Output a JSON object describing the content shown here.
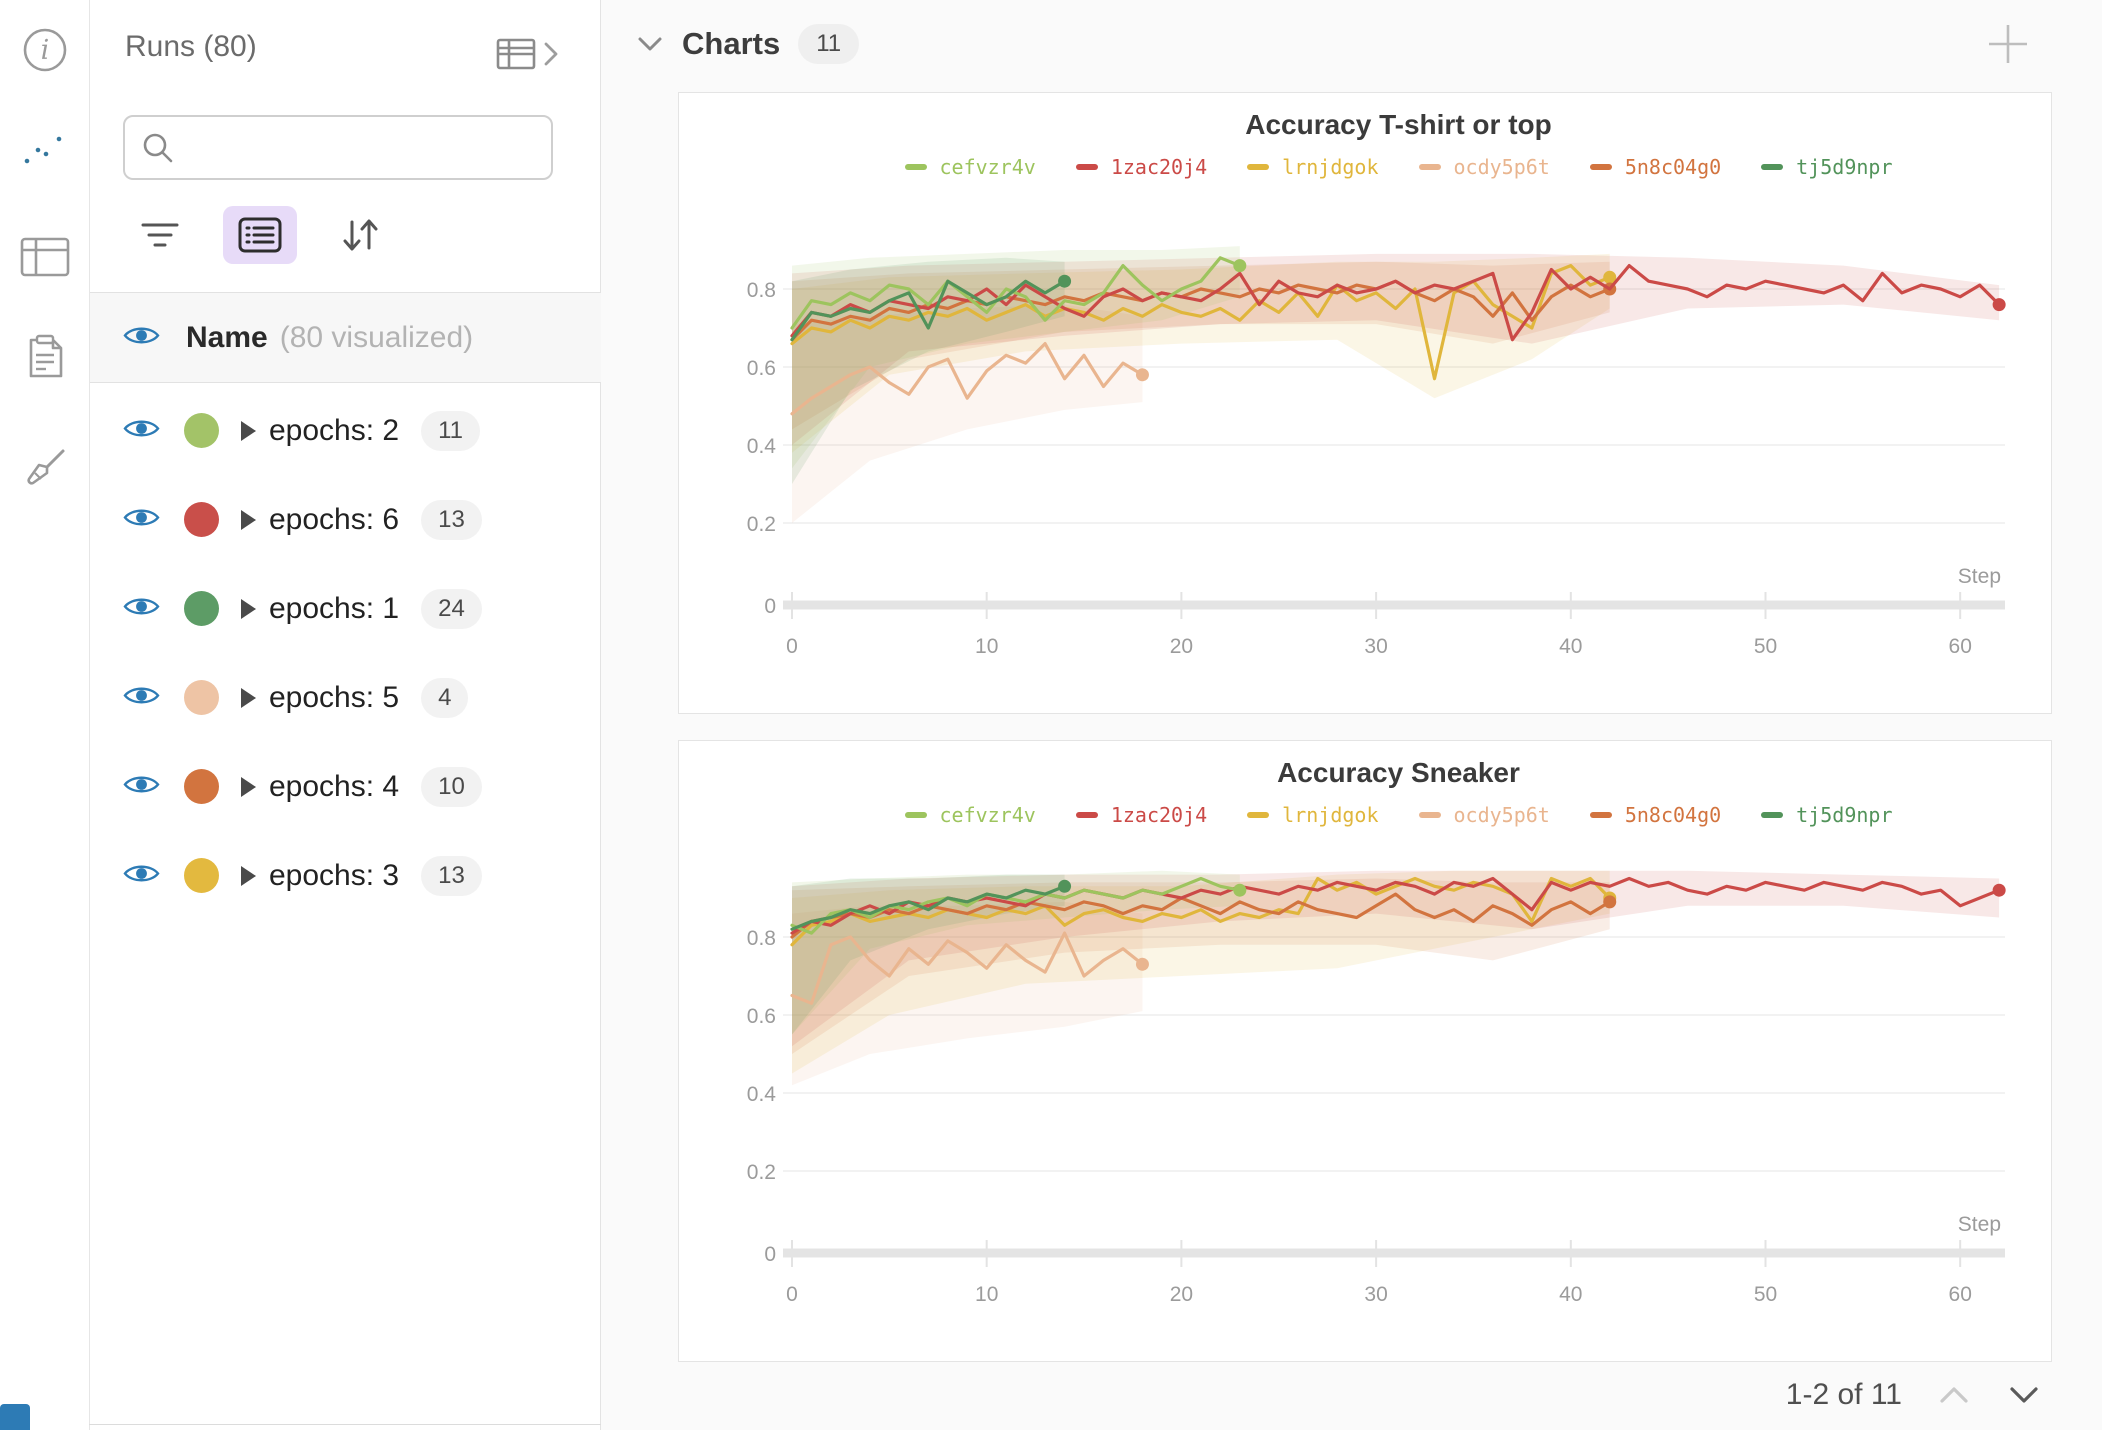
{
  "sidebar": {
    "icons": [
      {
        "name": "info-icon"
      },
      {
        "name": "line-chart-icon",
        "selected": true
      },
      {
        "name": "table-icon"
      },
      {
        "name": "notes-icon"
      },
      {
        "name": "broom-icon"
      }
    ],
    "accent_color": "#35789e"
  },
  "runs_panel": {
    "title": "Runs (80)",
    "expand_icon": "table-chevron-icon",
    "search": {
      "value": "",
      "placeholder": ""
    },
    "toolbar": [
      "filter-icon",
      "list-view-icon",
      "sort-icon"
    ],
    "name_header": {
      "label": "Name",
      "note": "(80 visualized)"
    },
    "eye_color": "#2d7bb5",
    "groups": [
      {
        "label": "epochs: 2",
        "count": "11",
        "color": "#a3c368"
      },
      {
        "label": "epochs: 6",
        "count": "13",
        "color": "#c94f4a"
      },
      {
        "label": "epochs: 1",
        "count": "24",
        "color": "#5d9c66"
      },
      {
        "label": "epochs: 5",
        "count": "4",
        "color": "#eec4a5"
      },
      {
        "label": "epochs: 4",
        "count": "10",
        "color": "#d2743f"
      },
      {
        "label": "epochs: 3",
        "count": "13",
        "color": "#e3b93f"
      }
    ]
  },
  "main": {
    "section_title": "Charts",
    "section_badge": "11",
    "add_button": "plus-icon",
    "pagination": {
      "label": "1-2 of 11",
      "prev_enabled": false,
      "next_enabled": true
    }
  },
  "chart_data": [
    {
      "type": "line",
      "title": "Accuracy T-shirt or top",
      "xlabel": "Step",
      "x_ticks": [
        0,
        10,
        20,
        30,
        40,
        50,
        60
      ],
      "y_ticks": [
        0,
        0.2,
        0.4,
        0.6,
        0.8
      ],
      "ylim": [
        0,
        1.0
      ],
      "grid": true,
      "legend_position": "top-center",
      "draw_order": [
        3,
        2,
        4,
        1,
        0,
        5
      ],
      "series": [
        {
          "name": "cefvzr4v",
          "color": "#9dc45e",
          "values": [
            0.7,
            0.77,
            0.76,
            0.79,
            0.77,
            0.81,
            0.8,
            0.76,
            0.82,
            0.78,
            0.74,
            0.8,
            0.78,
            0.72,
            0.77,
            0.76,
            0.79,
            0.86,
            0.81,
            0.77,
            0.8,
            0.82,
            0.88,
            0.86
          ],
          "band": {
            "x": [
              0,
              4,
              9,
              14,
              19,
              23
            ],
            "lo": [
              0.34,
              0.6,
              0.66,
              0.69,
              0.72,
              0.78
            ],
            "hi": [
              0.86,
              0.88,
              0.89,
              0.9,
              0.9,
              0.91
            ]
          }
        },
        {
          "name": "1zac20j4",
          "color": "#cb4a47",
          "values": [
            0.68,
            0.74,
            0.73,
            0.76,
            0.74,
            0.77,
            0.76,
            0.75,
            0.78,
            0.77,
            0.8,
            0.76,
            0.81,
            0.78,
            0.75,
            0.73,
            0.78,
            0.8,
            0.77,
            0.79,
            0.78,
            0.77,
            0.8,
            0.84,
            0.76,
            0.82,
            0.79,
            0.78,
            0.81,
            0.79,
            0.8,
            0.82,
            0.79,
            0.81,
            0.8,
            0.82,
            0.84,
            0.67,
            0.74,
            0.85,
            0.8,
            0.83,
            0.8,
            0.86,
            0.82,
            0.81,
            0.8,
            0.78,
            0.81,
            0.8,
            0.82,
            0.81,
            0.8,
            0.79,
            0.81,
            0.77,
            0.84,
            0.79,
            0.81,
            0.8,
            0.78,
            0.81,
            0.76
          ],
          "band": {
            "x": [
              0,
              6,
              14,
              22,
              30,
              38,
              46,
              54,
              62
            ],
            "lo": [
              0.4,
              0.64,
              0.68,
              0.71,
              0.72,
              0.66,
              0.75,
              0.76,
              0.72
            ],
            "hi": [
              0.84,
              0.86,
              0.87,
              0.88,
              0.89,
              0.89,
              0.88,
              0.86,
              0.81
            ]
          }
        },
        {
          "name": "lrnjdgok",
          "color": "#e0b63c",
          "values": [
            0.66,
            0.7,
            0.69,
            0.72,
            0.7,
            0.73,
            0.72,
            0.74,
            0.73,
            0.75,
            0.72,
            0.74,
            0.76,
            0.73,
            0.75,
            0.74,
            0.72,
            0.75,
            0.73,
            0.76,
            0.74,
            0.73,
            0.75,
            0.72,
            0.77,
            0.74,
            0.79,
            0.73,
            0.81,
            0.77,
            0.79,
            0.75,
            0.8,
            0.57,
            0.79,
            0.82,
            0.76,
            0.73,
            0.7,
            0.84,
            0.86,
            0.81,
            0.83
          ],
          "band": {
            "x": [
              0,
              5,
              12,
              20,
              28,
              33,
              38,
              42
            ],
            "lo": [
              0.38,
              0.58,
              0.64,
              0.66,
              0.67,
              0.52,
              0.62,
              0.75
            ],
            "hi": [
              0.8,
              0.83,
              0.84,
              0.85,
              0.87,
              0.87,
              0.88,
              0.89
            ]
          }
        },
        {
          "name": "ocdy5p6t",
          "color": "#e9b58f",
          "values": [
            0.48,
            0.52,
            0.55,
            0.58,
            0.6,
            0.56,
            0.53,
            0.6,
            0.62,
            0.52,
            0.59,
            0.63,
            0.61,
            0.66,
            0.57,
            0.63,
            0.55,
            0.61,
            0.58
          ],
          "band": {
            "x": [
              0,
              4,
              9,
              14,
              18
            ],
            "lo": [
              0.2,
              0.36,
              0.44,
              0.49,
              0.51
            ],
            "hi": [
              0.71,
              0.73,
              0.75,
              0.76,
              0.73
            ]
          }
        },
        {
          "name": "5n8c04g0",
          "color": "#d2743f",
          "values": [
            0.67,
            0.72,
            0.71,
            0.73,
            0.72,
            0.75,
            0.74,
            0.76,
            0.75,
            0.77,
            0.76,
            0.78,
            0.77,
            0.76,
            0.78,
            0.77,
            0.79,
            0.78,
            0.77,
            0.79,
            0.78,
            0.8,
            0.79,
            0.78,
            0.8,
            0.79,
            0.81,
            0.8,
            0.79,
            0.81,
            0.8,
            0.82,
            0.79,
            0.77,
            0.8,
            0.78,
            0.73,
            0.79,
            0.72,
            0.78,
            0.81,
            0.78,
            0.8
          ],
          "band": {
            "x": [
              0,
              6,
              14,
              22,
              30,
              36,
              42
            ],
            "lo": [
              0.44,
              0.62,
              0.69,
              0.71,
              0.71,
              0.66,
              0.74
            ],
            "hi": [
              0.82,
              0.84,
              0.85,
              0.86,
              0.87,
              0.86,
              0.87
            ]
          }
        },
        {
          "name": "tj5d9npr",
          "color": "#52935a",
          "values": [
            0.67,
            0.74,
            0.73,
            0.75,
            0.74,
            0.77,
            0.79,
            0.7,
            0.82,
            0.79,
            0.76,
            0.78,
            0.82,
            0.79,
            0.82
          ],
          "band": {
            "x": [
              0,
              3,
              7,
              11,
              14
            ],
            "lo": [
              0.3,
              0.54,
              0.64,
              0.69,
              0.73
            ],
            "hi": [
              0.82,
              0.85,
              0.87,
              0.88,
              0.87
            ]
          }
        }
      ]
    },
    {
      "type": "line",
      "title": "Accuracy Sneaker",
      "xlabel": "Step",
      "x_ticks": [
        0,
        10,
        20,
        30,
        40,
        50,
        60
      ],
      "y_ticks": [
        0,
        0.2,
        0.4,
        0.6,
        0.8
      ],
      "ylim": [
        0,
        1.0
      ],
      "grid": true,
      "legend_position": "top-center",
      "draw_order": [
        3,
        2,
        4,
        1,
        0,
        5
      ],
      "series": [
        {
          "name": "cefvzr4v",
          "color": "#9dc45e",
          "values": [
            0.83,
            0.81,
            0.86,
            0.87,
            0.85,
            0.88,
            0.87,
            0.89,
            0.9,
            0.88,
            0.91,
            0.9,
            0.89,
            0.91,
            0.9,
            0.92,
            0.91,
            0.9,
            0.92,
            0.91,
            0.93,
            0.95,
            0.93,
            0.92
          ],
          "band": {
            "x": [
              0,
              4,
              9,
              14,
              19,
              23
            ],
            "lo": [
              0.55,
              0.77,
              0.83,
              0.85,
              0.87,
              0.88
            ],
            "hi": [
              0.94,
              0.95,
              0.96,
              0.96,
              0.97,
              0.96
            ]
          }
        },
        {
          "name": "1zac20j4",
          "color": "#cb4a47",
          "values": [
            0.81,
            0.84,
            0.83,
            0.86,
            0.88,
            0.86,
            0.89,
            0.88,
            0.9,
            0.89,
            0.9,
            0.89,
            0.88,
            0.91,
            0.9,
            0.92,
            0.91,
            0.9,
            0.92,
            0.91,
            0.9,
            0.92,
            0.91,
            0.93,
            0.92,
            0.91,
            0.93,
            0.92,
            0.94,
            0.93,
            0.92,
            0.94,
            0.93,
            0.91,
            0.94,
            0.93,
            0.95,
            0.91,
            0.87,
            0.94,
            0.92,
            0.94,
            0.93,
            0.95,
            0.93,
            0.94,
            0.92,
            0.91,
            0.93,
            0.92,
            0.94,
            0.93,
            0.92,
            0.94,
            0.93,
            0.92,
            0.94,
            0.93,
            0.91,
            0.92,
            0.88,
            0.9,
            0.92
          ],
          "band": {
            "x": [
              0,
              6,
              14,
              22,
              30,
              38,
              46,
              54,
              62
            ],
            "lo": [
              0.52,
              0.74,
              0.8,
              0.84,
              0.86,
              0.82,
              0.88,
              0.88,
              0.85
            ],
            "hi": [
              0.93,
              0.95,
              0.96,
              0.96,
              0.97,
              0.97,
              0.97,
              0.96,
              0.95
            ]
          }
        },
        {
          "name": "lrnjdgok",
          "color": "#e0b63c",
          "values": [
            0.78,
            0.83,
            0.84,
            0.86,
            0.84,
            0.85,
            0.86,
            0.85,
            0.87,
            0.86,
            0.85,
            0.87,
            0.86,
            0.88,
            0.83,
            0.86,
            0.87,
            0.85,
            0.84,
            0.86,
            0.85,
            0.87,
            0.84,
            0.86,
            0.85,
            0.87,
            0.86,
            0.95,
            0.92,
            0.94,
            0.91,
            0.93,
            0.95,
            0.93,
            0.92,
            0.94,
            0.93,
            0.91,
            0.84,
            0.95,
            0.93,
            0.95,
            0.9
          ],
          "band": {
            "x": [
              0,
              5,
              12,
              20,
              28,
              34,
              42
            ],
            "lo": [
              0.45,
              0.6,
              0.68,
              0.7,
              0.72,
              0.78,
              0.86
            ],
            "hi": [
              0.9,
              0.92,
              0.93,
              0.93,
              0.96,
              0.97,
              0.97
            ]
          }
        },
        {
          "name": "ocdy5p6t",
          "color": "#e9b58f",
          "values": [
            0.65,
            0.63,
            0.78,
            0.8,
            0.74,
            0.7,
            0.77,
            0.73,
            0.79,
            0.76,
            0.72,
            0.78,
            0.74,
            0.71,
            0.81,
            0.7,
            0.74,
            0.77,
            0.73
          ],
          "band": {
            "x": [
              0,
              4,
              9,
              14,
              18
            ],
            "lo": [
              0.42,
              0.5,
              0.54,
              0.57,
              0.61
            ],
            "hi": [
              0.86,
              0.88,
              0.88,
              0.89,
              0.86
            ]
          }
        },
        {
          "name": "5n8c04g0",
          "color": "#d2743f",
          "values": [
            0.8,
            0.84,
            0.85,
            0.86,
            0.85,
            0.87,
            0.86,
            0.88,
            0.87,
            0.86,
            0.88,
            0.87,
            0.89,
            0.88,
            0.87,
            0.89,
            0.88,
            0.86,
            0.88,
            0.87,
            0.9,
            0.88,
            0.86,
            0.89,
            0.87,
            0.86,
            0.89,
            0.87,
            0.86,
            0.85,
            0.88,
            0.91,
            0.87,
            0.85,
            0.87,
            0.84,
            0.88,
            0.86,
            0.83,
            0.87,
            0.89,
            0.86,
            0.89
          ],
          "band": {
            "x": [
              0,
              6,
              14,
              22,
              30,
              36,
              42
            ],
            "lo": [
              0.5,
              0.7,
              0.76,
              0.78,
              0.78,
              0.74,
              0.82
            ],
            "hi": [
              0.92,
              0.93,
              0.94,
              0.94,
              0.95,
              0.94,
              0.94
            ]
          }
        },
        {
          "name": "tj5d9npr",
          "color": "#52935a",
          "values": [
            0.82,
            0.84,
            0.85,
            0.87,
            0.86,
            0.88,
            0.89,
            0.87,
            0.9,
            0.89,
            0.91,
            0.9,
            0.92,
            0.91,
            0.93
          ],
          "band": {
            "x": [
              0,
              3,
              7,
              11,
              14
            ],
            "lo": [
              0.55,
              0.74,
              0.82,
              0.86,
              0.88
            ],
            "hi": [
              0.93,
              0.95,
              0.95,
              0.96,
              0.96
            ]
          }
        }
      ]
    }
  ]
}
